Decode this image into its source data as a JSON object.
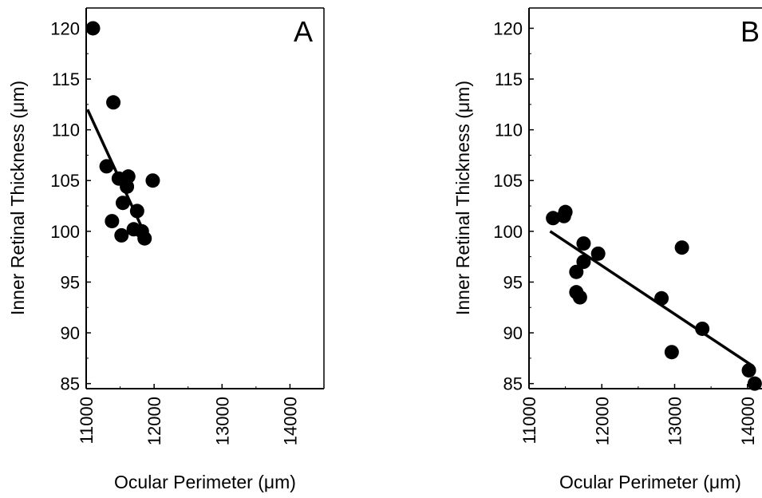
{
  "chart_data": [
    {
      "type": "scatter",
      "panel_label": "A",
      "xlabel": "Ocular Perimeter (μm)",
      "ylabel": "Inner Retinal Thickness (μm)",
      "xlim": [
        11000,
        14500
      ],
      "ylim": [
        84.5,
        122
      ],
      "x_ticks": [
        11000,
        12000,
        13000,
        14000
      ],
      "y_ticks": [
        85,
        90,
        95,
        100,
        105,
        110,
        115,
        120
      ],
      "grid": false,
      "points": [
        {
          "x": 11100,
          "y": 120.0
        },
        {
          "x": 11400,
          "y": 112.7
        },
        {
          "x": 11300,
          "y": 106.4
        },
        {
          "x": 11480,
          "y": 105.2
        },
        {
          "x": 11620,
          "y": 105.4
        },
        {
          "x": 11600,
          "y": 104.4
        },
        {
          "x": 11980,
          "y": 105.0
        },
        {
          "x": 11540,
          "y": 102.8
        },
        {
          "x": 11750,
          "y": 102.0
        },
        {
          "x": 11380,
          "y": 101.0
        },
        {
          "x": 11700,
          "y": 100.2
        },
        {
          "x": 11820,
          "y": 100.0
        },
        {
          "x": 11520,
          "y": 99.6
        },
        {
          "x": 11860,
          "y": 99.3
        }
      ],
      "fit_line": {
        "x": [
          11020,
          11880
        ],
        "y": [
          112.0,
          99.5
        ]
      }
    },
    {
      "type": "scatter",
      "panel_label": "B",
      "xlabel": "Ocular Perimeter (μm)",
      "ylabel": "Inner Retinal Thickness (μm)",
      "xlim": [
        11000,
        14200
      ],
      "ylim": [
        84.5,
        122
      ],
      "x_ticks": [
        11000,
        12000,
        13000,
        14000
      ],
      "y_ticks": [
        85,
        90,
        95,
        100,
        105,
        110,
        115,
        120
      ],
      "grid": false,
      "points": [
        {
          "x": 11330,
          "y": 101.3
        },
        {
          "x": 11480,
          "y": 101.5
        },
        {
          "x": 11500,
          "y": 101.9
        },
        {
          "x": 11750,
          "y": 98.8
        },
        {
          "x": 11950,
          "y": 97.8
        },
        {
          "x": 11750,
          "y": 97.0
        },
        {
          "x": 11650,
          "y": 96.0
        },
        {
          "x": 11650,
          "y": 94.0
        },
        {
          "x": 11700,
          "y": 93.5
        },
        {
          "x": 13100,
          "y": 98.4
        },
        {
          "x": 12820,
          "y": 93.4
        },
        {
          "x": 13380,
          "y": 90.4
        },
        {
          "x": 12960,
          "y": 88.1
        },
        {
          "x": 14020,
          "y": 86.3
        },
        {
          "x": 14100,
          "y": 85.0
        }
      ],
      "fit_line": {
        "x": [
          11290,
          14080
        ],
        "y": [
          100.0,
          86.7
        ]
      }
    }
  ]
}
